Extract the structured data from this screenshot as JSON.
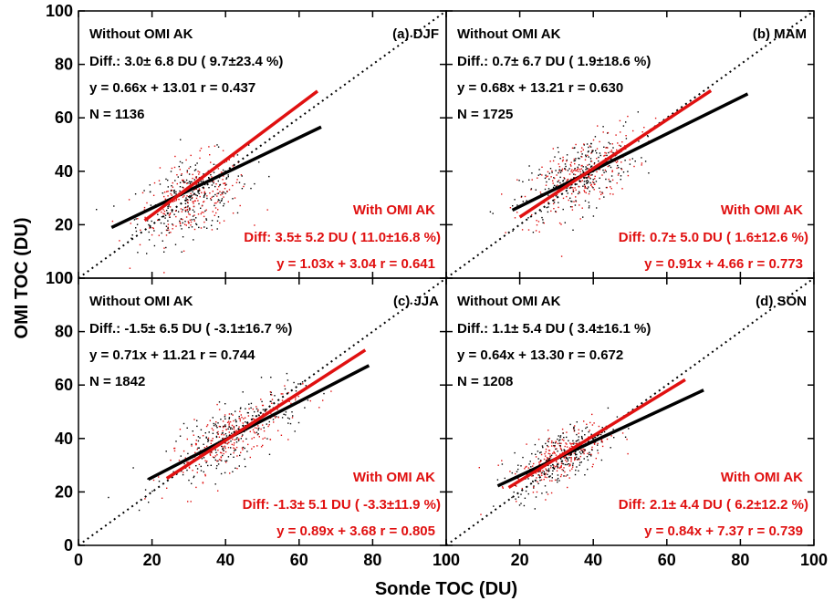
{
  "xlabel": "Sonde TOC (DU)",
  "ylabel": "OMI TOC (DU)",
  "colors": {
    "without": "#000000",
    "with": "#e01010",
    "one_to_one": "#000000"
  },
  "ticks": [
    0,
    20,
    40,
    60,
    80,
    100
  ],
  "chart_data": [
    {
      "type": "scatter",
      "panel": "(a) DJF",
      "xlim": [
        0,
        100
      ],
      "ylim": [
        0,
        100
      ],
      "without": {
        "title": "Without OMI AK",
        "diff": "Diff.:   3.0± 6.8 DU (  9.7±23.4 %)",
        "fit_text": "y = 0.66x + 13.01 r = 0.437",
        "n_text": "N =  1136",
        "slope": 0.66,
        "intercept": 13.01,
        "x_range": [
          9,
          66
        ],
        "cloud": {
          "cx": 31,
          "cy": 30,
          "sx": 7.5,
          "sy": 8,
          "rho": 0.45
        }
      },
      "with": {
        "title": "With OMI AK",
        "diff": "Diff:   3.5± 5.2 DU ( 11.0±16.8 %)",
        "fit_text": "y = 1.03x + 3.04 r = 0.641",
        "slope": 1.03,
        "intercept": 3.04,
        "x_range": [
          18,
          65
        ]
      }
    },
    {
      "type": "scatter",
      "panel": "(b) MAM",
      "xlim": [
        0,
        100
      ],
      "ylim": [
        0,
        100
      ],
      "without": {
        "title": "Without OMI AK",
        "diff": "Diff.:   0.7± 6.7 DU (  1.9±18.6 %)",
        "fit_text": "y = 0.68x + 13.21 r = 0.630",
        "n_text": "N =  1725",
        "slope": 0.68,
        "intercept": 13.21,
        "x_range": [
          18,
          82
        ],
        "cloud": {
          "cx": 36,
          "cy": 38,
          "sx": 8,
          "sy": 8.5,
          "rho": 0.62
        }
      },
      "with": {
        "title": "With OMI AK",
        "diff": "Diff:   0.7± 5.0 DU (  1.6±12.6 %)",
        "fit_text": "y = 0.91x + 4.66 r = 0.773",
        "slope": 0.91,
        "intercept": 4.66,
        "x_range": [
          20,
          72
        ]
      }
    },
    {
      "type": "scatter",
      "panel": "(c) JJA",
      "xlim": [
        0,
        100
      ],
      "ylim": [
        0,
        100
      ],
      "without": {
        "title": "Without OMI AK",
        "diff": "Diff.:  -1.5± 6.5 DU ( -3.1±16.7 %)",
        "fit_text": "y = 0.71x + 11.21 r = 0.744",
        "n_text": "N =  1842",
        "slope": 0.71,
        "intercept": 11.21,
        "x_range": [
          19,
          79
        ],
        "cloud": {
          "cx": 42,
          "cy": 41,
          "sx": 9,
          "sy": 8.5,
          "rho": 0.75
        }
      },
      "with": {
        "title": "With OMI AK",
        "diff": "Diff:  -1.3± 5.1 DU ( -3.3±11.9 %)",
        "fit_text": "y = 0.89x + 3.68 r = 0.805",
        "slope": 0.89,
        "intercept": 3.68,
        "x_range": [
          24,
          78
        ]
      }
    },
    {
      "type": "scatter",
      "panel": "(d) SON",
      "xlim": [
        0,
        100
      ],
      "ylim": [
        0,
        100
      ],
      "without": {
        "title": "Without OMI AK",
        "diff": "Diff.:   1.1± 5.4 DU (  3.4±16.1 %)",
        "fit_text": "y = 0.64x + 13.30 r = 0.672",
        "n_text": "N =  1208",
        "slope": 0.64,
        "intercept": 13.3,
        "x_range": [
          14,
          70
        ],
        "cloud": {
          "cx": 31,
          "cy": 33,
          "sx": 6.5,
          "sy": 6.5,
          "rho": 0.65
        }
      },
      "with": {
        "title": "With OMI AK",
        "diff": "Diff:   2.1± 4.4 DU (  6.2±12.2 %)",
        "fit_text": "y = 0.84x + 7.37 r = 0.739",
        "slope": 0.84,
        "intercept": 7.37,
        "x_range": [
          17,
          65
        ]
      }
    }
  ]
}
